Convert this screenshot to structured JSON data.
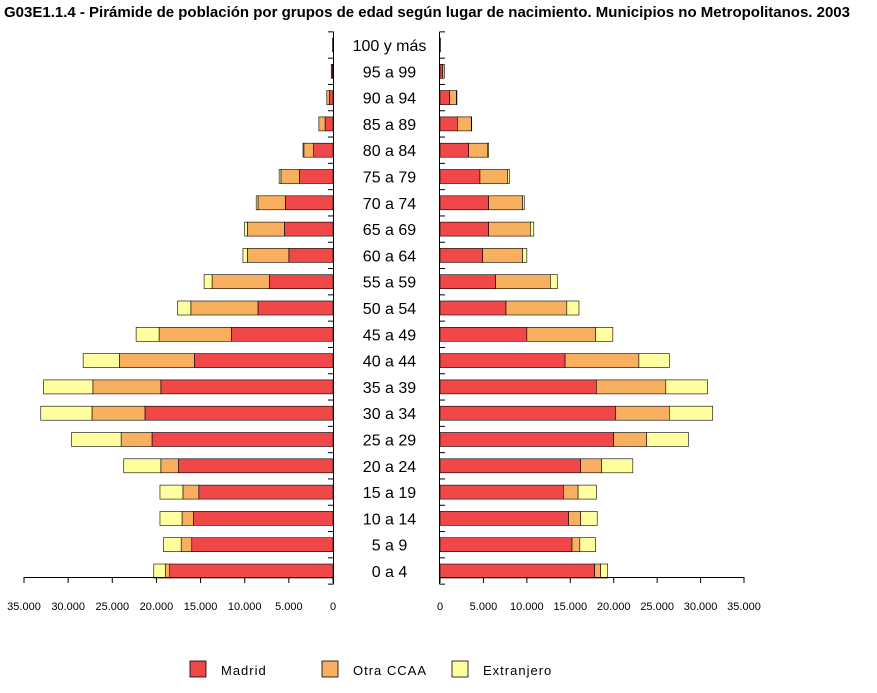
{
  "title": "G03E1.1.4 - Pirámide de población por grupos de edad según lugar de nacimiento. Municipios no Metropolitanos. 2003",
  "chart_data": {
    "type": "bar",
    "orientation": "horizontal-pyramid",
    "categories": [
      "0 a 4",
      "5 a 9",
      "10 a 14",
      "15 a 19",
      "20 a 24",
      "25 a 29",
      "30 a 34",
      "35 a 39",
      "40 a 44",
      "45 a 49",
      "50 a 54",
      "55 a 59",
      "60 a 64",
      "65 a 69",
      "70 a 74",
      "75 a 79",
      "80 a 84",
      "85 a 89",
      "90 a 94",
      "95 a 99",
      "100 y más"
    ],
    "colors": {
      "Madrid": "#f04848",
      "Otra CCAA": "#f8b060",
      "Extranjero": "#ffffa0"
    },
    "left": {
      "series": [
        {
          "name": "Madrid",
          "values": [
            18500,
            16000,
            15800,
            15200,
            17500,
            20500,
            21300,
            19500,
            15700,
            11500,
            8500,
            7200,
            5000,
            5500,
            5400,
            3800,
            2200,
            900,
            400,
            100,
            0
          ]
        },
        {
          "name": "Otra CCAA",
          "values": [
            500,
            1200,
            1300,
            1800,
            2000,
            3500,
            6000,
            7700,
            8500,
            8200,
            7600,
            6500,
            4700,
            4200,
            3100,
            2100,
            1100,
            700,
            300,
            100,
            50
          ]
        },
        {
          "name": "Extranjero",
          "values": [
            1300,
            2000,
            2500,
            2600,
            4200,
            5600,
            5800,
            5600,
            4100,
            2600,
            1500,
            900,
            500,
            300,
            200,
            200,
            100,
            0,
            0,
            0,
            0
          ]
        }
      ],
      "xlim": [
        0,
        35000
      ],
      "ticks": [
        "35.000",
        "30.000",
        "25.000",
        "20.000",
        "15.000",
        "10.000",
        "5.000",
        "0"
      ]
    },
    "right": {
      "series": [
        {
          "name": "Madrid",
          "values": [
            17800,
            15200,
            14800,
            14200,
            16200,
            20000,
            20200,
            18000,
            14400,
            10000,
            7600,
            6400,
            4900,
            5600,
            5600,
            4600,
            3300,
            2000,
            1100,
            300,
            0
          ]
        },
        {
          "name": "Otra CCAA",
          "values": [
            700,
            900,
            1400,
            1700,
            2400,
            3800,
            6200,
            8000,
            8500,
            7900,
            7000,
            6300,
            4600,
            4800,
            3900,
            3200,
            2200,
            1600,
            800,
            200,
            50
          ]
        },
        {
          "name": "Extranjero",
          "values": [
            800,
            1800,
            1900,
            2100,
            3600,
            4800,
            5000,
            4800,
            3500,
            2000,
            1400,
            800,
            500,
            400,
            200,
            200,
            100,
            50,
            50,
            0,
            0
          ]
        }
      ],
      "xlim": [
        0,
        35000
      ],
      "ticks": [
        "0",
        "5.000",
        "10.000",
        "15.000",
        "20.000",
        "25.000",
        "30.000",
        "35.000"
      ]
    },
    "legend": [
      "Madrid",
      "Otra CCAA",
      "Extranjero"
    ],
    "legend_position": "bottom"
  }
}
